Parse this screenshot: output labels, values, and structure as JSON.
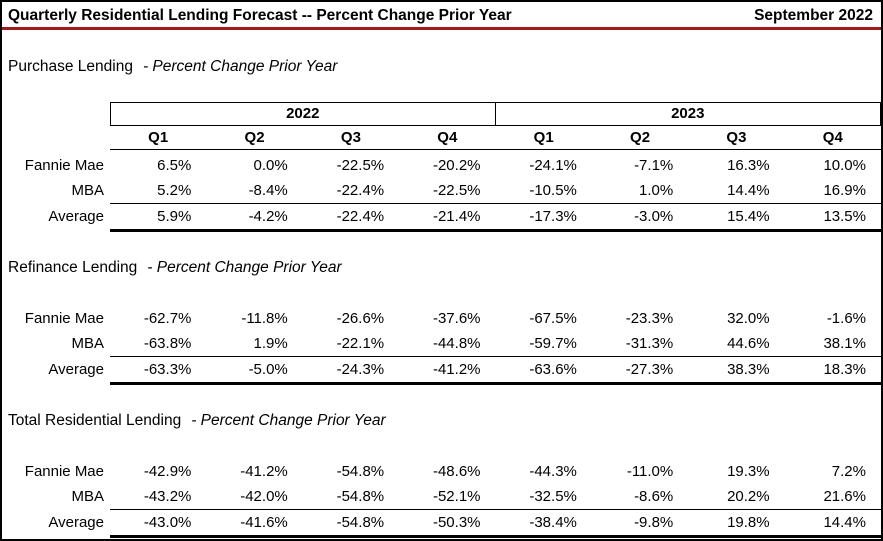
{
  "header": {
    "title": "Quarterly Residential Lending Forecast -- Percent Change Prior Year",
    "date": "September 2022"
  },
  "colors": {
    "accent_rule": "#9E1B1E",
    "border": "#000000",
    "text": "#000000"
  },
  "table_header": {
    "year_groups": [
      "2022",
      "2023"
    ],
    "quarters": [
      "Q1",
      "Q2",
      "Q3",
      "Q4"
    ]
  },
  "sections": [
    {
      "id": "purchase-lending",
      "name": "Purchase Lending",
      "subtitle": "- Percent Change Prior Year",
      "show_column_headers": true,
      "rows": [
        {
          "label": "Fannie Mae",
          "values": [
            "6.5%",
            "0.0%",
            "-22.5%",
            "-20.2%",
            "-24.1%",
            "-7.1%",
            "16.3%",
            "10.0%"
          ]
        },
        {
          "label": "MBA",
          "values": [
            "5.2%",
            "-8.4%",
            "-22.4%",
            "-22.5%",
            "-10.5%",
            "1.0%",
            "14.4%",
            "16.9%"
          ]
        },
        {
          "label": "Average",
          "values": [
            "5.9%",
            "-4.2%",
            "-22.4%",
            "-21.4%",
            "-17.3%",
            "-3.0%",
            "15.4%",
            "13.5%"
          ]
        }
      ]
    },
    {
      "id": "refinance-lending",
      "name": "Refinance Lending",
      "subtitle": "- Percent Change Prior Year",
      "show_column_headers": false,
      "rows": [
        {
          "label": "Fannie Mae",
          "values": [
            "-62.7%",
            "-11.8%",
            "-26.6%",
            "-37.6%",
            "-67.5%",
            "-23.3%",
            "32.0%",
            "-1.6%"
          ]
        },
        {
          "label": "MBA",
          "values": [
            "-63.8%",
            "1.9%",
            "-22.1%",
            "-44.8%",
            "-59.7%",
            "-31.3%",
            "44.6%",
            "38.1%"
          ]
        },
        {
          "label": "Average",
          "values": [
            "-63.3%",
            "-5.0%",
            "-24.3%",
            "-41.2%",
            "-63.6%",
            "-27.3%",
            "38.3%",
            "18.3%"
          ]
        }
      ]
    },
    {
      "id": "total-residential-lending",
      "name": "Total Residential Lending",
      "subtitle": "- Percent Change Prior Year",
      "show_column_headers": false,
      "rows": [
        {
          "label": "Fannie Mae",
          "values": [
            "-42.9%",
            "-41.2%",
            "-54.8%",
            "-48.6%",
            "-44.3%",
            "-11.0%",
            "19.3%",
            "7.2%"
          ]
        },
        {
          "label": "MBA",
          "values": [
            "-43.2%",
            "-42.0%",
            "-54.8%",
            "-52.1%",
            "-32.5%",
            "-8.6%",
            "20.2%",
            "21.6%"
          ]
        },
        {
          "label": "Average",
          "values": [
            "-43.0%",
            "-41.6%",
            "-54.8%",
            "-50.3%",
            "-38.4%",
            "-9.8%",
            "19.8%",
            "14.4%"
          ]
        }
      ]
    }
  ]
}
